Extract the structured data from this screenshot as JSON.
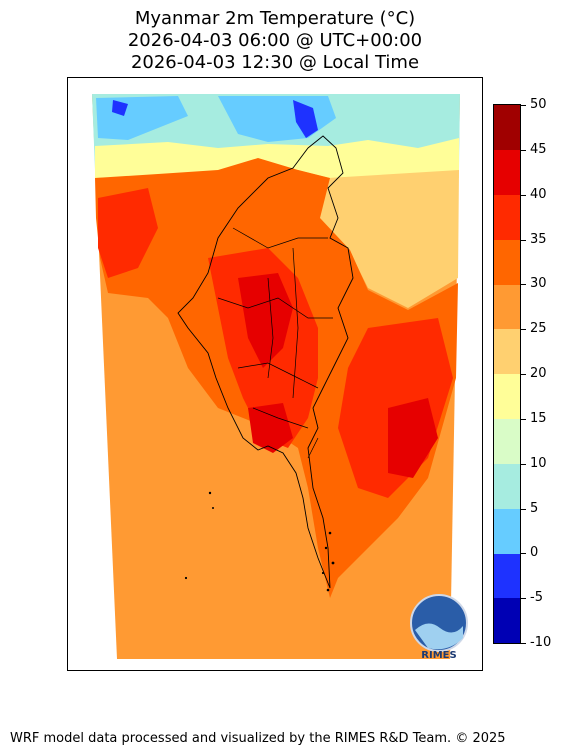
{
  "title": {
    "line1": "Myanmar 2m Temperature (°C)",
    "line2": "2026-04-03 06:00 @ UTC+00:00",
    "line3": "2026-04-03 12:30 @ Local Time"
  },
  "colorbar": {
    "ticks": [
      "50",
      "45",
      "40",
      "35",
      "30",
      "25",
      "20",
      "15",
      "10",
      "5",
      "0",
      "-5",
      "-10"
    ],
    "levels": [
      -10,
      -5,
      0,
      5,
      10,
      15,
      20,
      25,
      30,
      35,
      40,
      45,
      50
    ],
    "colors": [
      "#0000b4",
      "#1e32ff",
      "#66ccff",
      "#a6ece0",
      "#d9fcc7",
      "#fffe98",
      "#ffd070",
      "#ff9a33",
      "#ff6600",
      "#ff2a00",
      "#e60000",
      "#a00000"
    ]
  },
  "map": {
    "logo_label": "RIMES",
    "colors": {
      "ocean": "#ff9a33",
      "land_warm": "#ff6600",
      "land_hot": "#ff2a00",
      "land_hottest": "#e60000",
      "highland": "#ffd070",
      "cold": "#66ccff",
      "cool": "#a6ece0",
      "mild": "#fffe98",
      "very_cold": "#1e32ff"
    }
  },
  "footer": "WRF model data processed and visualized by the RIMES R&D Team. © 2025"
}
